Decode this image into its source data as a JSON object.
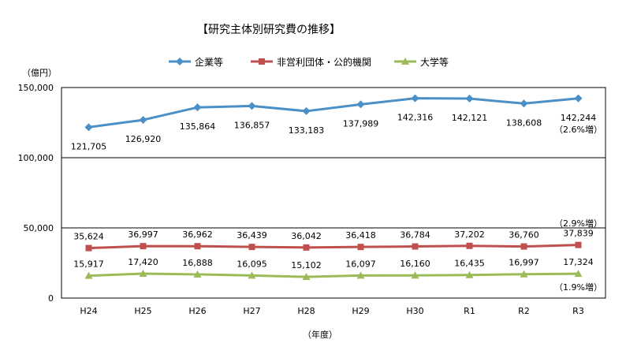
{
  "chart_data": {
    "type": "line",
    "title": "【研究主体別研究費の推移】",
    "ylabel": "（億円）",
    "xlabel": "（年度）",
    "ylim": [
      0,
      150000
    ],
    "yticks": [
      "0",
      "50,000",
      "100,000",
      "150,000"
    ],
    "legend_position": "top",
    "categories": [
      "H24",
      "H25",
      "H26",
      "H27",
      "H28",
      "H29",
      "H30",
      "R1",
      "R2",
      "R3"
    ],
    "series": [
      {
        "name": "企業等",
        "color": "#4a8fc6",
        "marker": "diamond",
        "values": [
          121705,
          126920,
          135864,
          136857,
          133183,
          137989,
          142316,
          142121,
          138608,
          142244
        ],
        "labels": [
          "121,705",
          "126,920",
          "135,864",
          "136,857",
          "133,183",
          "137,989",
          "142,316",
          "142,121",
          "138,608",
          "142,244"
        ],
        "note": "（2.6%増）"
      },
      {
        "name": "非営利団体・公的機関",
        "color": "#c0504d",
        "marker": "square",
        "values": [
          35624,
          36997,
          36962,
          36439,
          36042,
          36418,
          36784,
          37202,
          36760,
          37839
        ],
        "labels": [
          "35,624",
          "36,997",
          "36,962",
          "36,439",
          "36,042",
          "36,418",
          "36,784",
          "37,202",
          "36,760",
          "37,839"
        ],
        "note": "（2.9%増）"
      },
      {
        "name": "大学等",
        "color": "#9bbb59",
        "marker": "triangle",
        "values": [
          15917,
          17420,
          16888,
          16095,
          15102,
          16097,
          16160,
          16435,
          16997,
          17324
        ],
        "labels": [
          "15,917",
          "17,420",
          "16,888",
          "16,095",
          "15,102",
          "16,097",
          "16,160",
          "16,435",
          "16,997",
          "17,324"
        ],
        "note": "（1.9%増）"
      }
    ]
  }
}
